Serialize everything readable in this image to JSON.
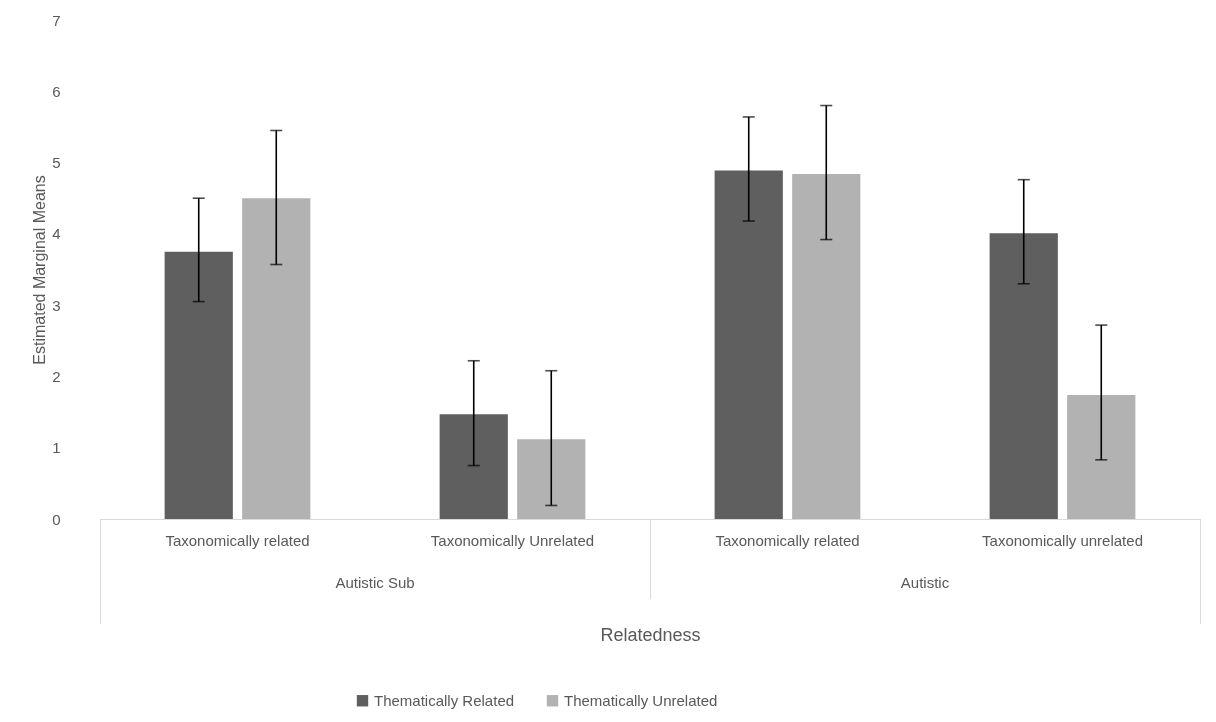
{
  "chart_data": {
    "type": "bar",
    "xlabel": "Relatedness",
    "ylabel": "Estimated Marginal Means",
    "categories": [
      "Taxonomically related",
      "Taxonomically Unrelated",
      "Taxonomically related",
      "Taxonomically unrelated"
    ],
    "series": [
      {
        "name": "Thematically Related",
        "color": "#5f5f5f",
        "values": [
          3.75,
          1.47,
          4.89,
          4.01
        ],
        "errors": [
          [
            3.05,
            4.5
          ],
          [
            0.75,
            2.22
          ],
          [
            4.18,
            5.64
          ],
          [
            3.3,
            4.76
          ]
        ]
      },
      {
        "name": "Thematically Unrelated",
        "color": "#b2b2b2",
        "values": [
          4.5,
          1.12,
          4.84,
          1.74
        ],
        "errors": [
          [
            3.57,
            5.45
          ],
          [
            0.19,
            2.08
          ],
          [
            3.92,
            5.8
          ],
          [
            0.83,
            2.72
          ]
        ]
      }
    ],
    "annotations": [
      "Autistic Sub",
      "Autistic"
    ],
    "ylim": [
      0,
      7
    ],
    "yticks": [
      0,
      1,
      2,
      3,
      4,
      5,
      6,
      7
    ],
    "grid": false,
    "legend": "bottom"
  }
}
